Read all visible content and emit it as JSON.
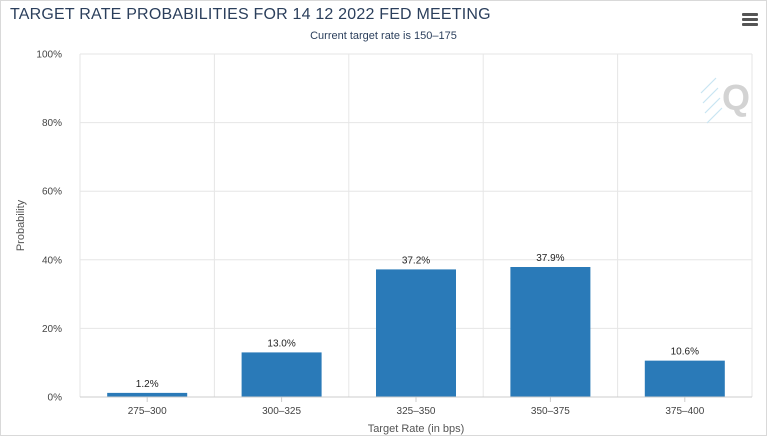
{
  "header": {
    "title": "TARGET RATE PROBABILITIES FOR 14 12 2022 FED MEETING",
    "subtitle": "Current target rate is 150–175"
  },
  "menu": {
    "icon": "hamburger-menu-icon"
  },
  "watermark": {
    "icon": "q-logo-icon",
    "text": "Q"
  },
  "colors": {
    "bar": "#2a7ab8",
    "grid": "#e6e6e6",
    "axis": "#cccccc"
  },
  "chart_data": {
    "type": "bar",
    "categories": [
      "275–300",
      "300–325",
      "325–350",
      "350–375",
      "375–400"
    ],
    "values": [
      1.2,
      13.0,
      37.2,
      37.9,
      10.6
    ],
    "data_labels": [
      "1.2%",
      "13.0%",
      "37.2%",
      "37.9%",
      "10.6%"
    ],
    "yticks": [
      0,
      20,
      40,
      60,
      80,
      100
    ],
    "ytick_labels": [
      "0%",
      "20%",
      "40%",
      "60%",
      "80%",
      "100%"
    ],
    "ylim": [
      0,
      100
    ],
    "xlabel": "Target Rate (in bps)",
    "ylabel": "Probability",
    "grid": true
  }
}
